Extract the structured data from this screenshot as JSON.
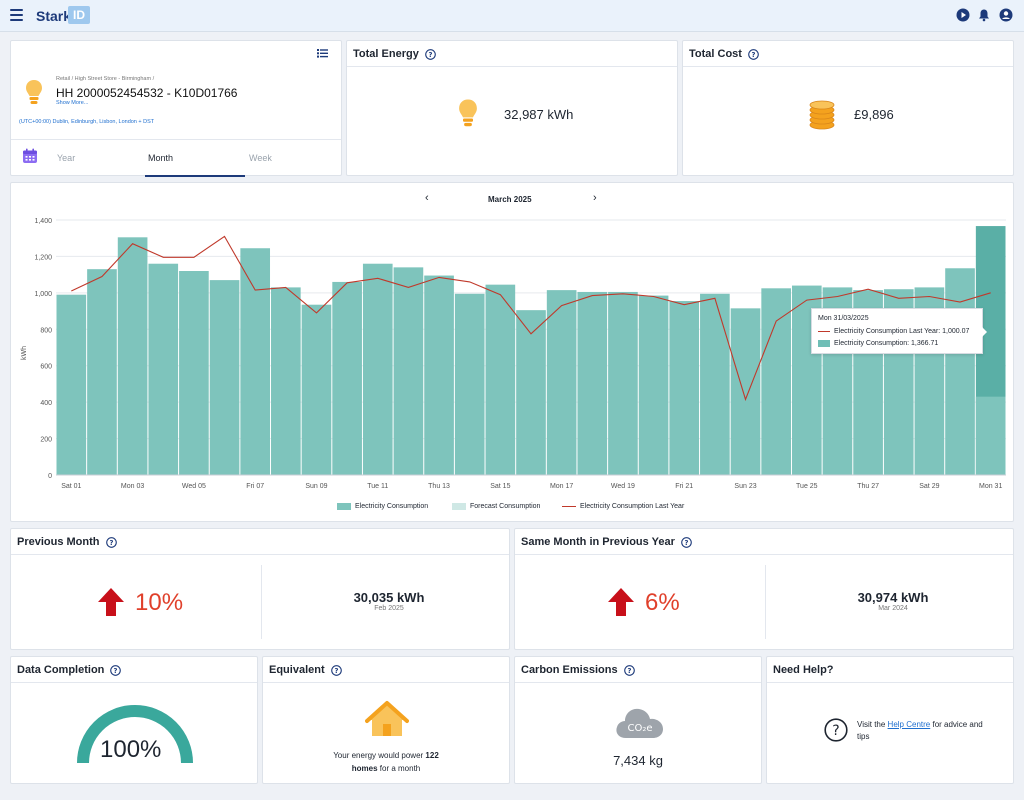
{
  "header": {
    "brand": "Stark",
    "brand_badge": "ID"
  },
  "meter": {
    "path": "Retail / High Street Store - Birmingham /",
    "id": "HH 2000052454532 - K10D01766",
    "show_more": "Show More...",
    "timezone": "(UTC+00:00) Dublin, Edinburgh, Lisbon, London + DST",
    "tabs": [
      {
        "label": "Year",
        "active": false
      },
      {
        "label": "Month",
        "active": true
      },
      {
        "label": "Week",
        "active": false
      }
    ]
  },
  "total_energy": {
    "title": "Total Energy",
    "value": "32,987 kWh"
  },
  "total_cost": {
    "title": "Total Cost",
    "value": "£9,896"
  },
  "chart": {
    "month_label": "March 2025",
    "prev_label": "‹",
    "next_label": "›",
    "tooltip": {
      "title": "Mon 31/03/2025",
      "line": "Electricity Consumption Last Year: 1,000.07",
      "bar": "Electricity Consumption: 1,366.71"
    },
    "legend": [
      "Electricity Consumption",
      "Forecast Consumption",
      "Electricity Consumption Last Year"
    ]
  },
  "chart_data": {
    "type": "bar",
    "title": "March 2025",
    "ylabel": "kWh",
    "xlabel": "",
    "ylim": [
      0,
      1400
    ],
    "yticks": [
      0,
      200,
      400,
      600,
      800,
      1000,
      1200,
      1400
    ],
    "ytick_labels": [
      "0",
      "200",
      "400",
      "600",
      "800",
      "1,000",
      "1,200",
      "1,400"
    ],
    "categories": [
      "Sat 01",
      "Sun 02",
      "Mon 03",
      "Tue 04",
      "Wed 05",
      "Thu 06",
      "Fri 07",
      "Sat 08",
      "Sun 09",
      "Mon 10",
      "Tue 11",
      "Wed 12",
      "Thu 13",
      "Fri 14",
      "Sat 15",
      "Sun 16",
      "Mon 17",
      "Tue 18",
      "Wed 19",
      "Thu 20",
      "Fri 21",
      "Sat 22",
      "Sun 23",
      "Mon 24",
      "Tue 25",
      "Wed 26",
      "Thu 27",
      "Fri 28",
      "Sat 29",
      "Sun 30",
      "Mon 31"
    ],
    "xtick_labels": [
      "Sat 01",
      "",
      "Mon 03",
      "",
      "Wed 05",
      "",
      "Fri 07",
      "",
      "Sun 09",
      "",
      "Tue 11",
      "",
      "Thu 13",
      "",
      "Sat 15",
      "",
      "Mon 17",
      "",
      "Wed 19",
      "",
      "Fri 21",
      "",
      "Sun 23",
      "",
      "Tue 25",
      "",
      "Thu 27",
      "",
      "Sat 29",
      "",
      "Mon 31"
    ],
    "highlight_index": 30,
    "legend_position": "bottom",
    "grid": true,
    "series": [
      {
        "name": "Electricity Consumption",
        "type": "bar",
        "color": "#7ec4bc",
        "values": [
          990,
          1130,
          1305,
          1160,
          1120,
          1070,
          1245,
          1030,
          935,
          1060,
          1160,
          1140,
          1095,
          995,
          1045,
          905,
          1015,
          1005,
          1005,
          985,
          955,
          995,
          915,
          1025,
          1040,
          1030,
          1015,
          1020,
          1030,
          1135,
          1366.71
        ]
      },
      {
        "name": "Electricity Consumption Last Year",
        "type": "line",
        "color": "#c0392b",
        "values": [
          1010,
          1090,
          1270,
          1195,
          1195,
          1310,
          1015,
          1030,
          890,
          1055,
          1080,
          1030,
          1085,
          1060,
          990,
          775,
          930,
          985,
          995,
          980,
          935,
          970,
          415,
          845,
          960,
          980,
          1020,
          970,
          980,
          950,
          1000.07
        ]
      }
    ]
  },
  "previous_month": {
    "title": "Previous Month",
    "pct": "10%",
    "value": "30,035 kWh",
    "sub": "Feb 2025"
  },
  "same_month": {
    "title": "Same Month in Previous Year",
    "pct": "6%",
    "value": "30,974 kWh",
    "sub": "Mar 2024"
  },
  "data_completion": {
    "title": "Data Completion",
    "value": "100%",
    "fraction": 1.0
  },
  "equivalent": {
    "title": "Equivalent",
    "line1": "Your energy would power",
    "homes": "122",
    "homes_label": "homes",
    "line2": "for a month"
  },
  "carbon": {
    "title": "Carbon Emissions",
    "value": "7,434 kg",
    "icon_text": "CO₂e"
  },
  "need_help": {
    "title": "Need Help?",
    "pre": "Visit the",
    "link": "Help Centre",
    "post": "for advice and tips"
  },
  "colors": {
    "accent": "#1d3a7a",
    "bar": "#7ec4bc",
    "bar_highlight": "#5aafa6",
    "line": "#c0392b",
    "arrow": "#c8101a",
    "pct": "#e0402b"
  }
}
